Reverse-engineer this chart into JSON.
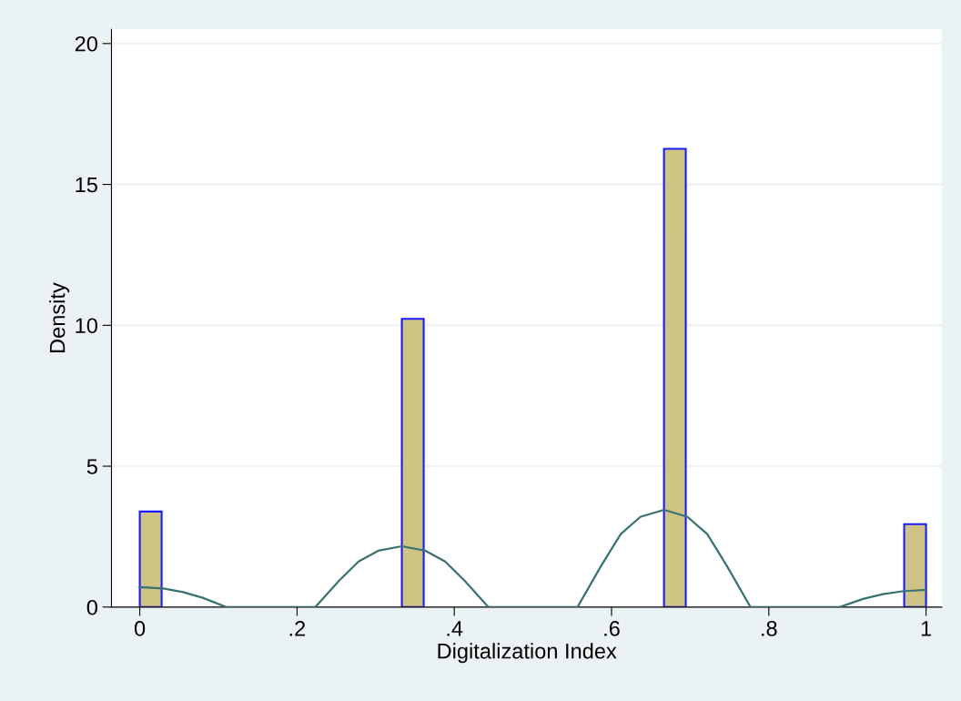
{
  "chart_data": {
    "type": "histogram",
    "xlabel": "Digitalization Index",
    "ylabel": "Density",
    "bins": [
      0,
      0.0278,
      0.3333,
      0.3611,
      0.6667,
      0.6944,
      0.9722,
      1
    ],
    "values": [
      3.39,
      0,
      10.23,
      0,
      16.26,
      0,
      2.94
    ],
    "color": "#d0c485",
    "series": [
      {
        "type": "line",
        "color": "#3a7272",
        "x": [
          0,
          0.03,
          0.055,
          0.08,
          0.11,
          0.2233,
          0.2533,
          0.2783,
          0.3033,
          0.3333,
          0.3633,
          0.3883,
          0.4133,
          0.4433,
          0.5567,
          0.5867,
          0.6117,
          0.6367,
          0.6667,
          0.6967,
          0.7217,
          0.7467,
          0.7767,
          0.89,
          0.92,
          0.945,
          0.97,
          1
        ],
        "values": [
          0.71,
          0.66,
          0.53,
          0.33,
          0,
          0,
          0.93,
          1.62,
          2.0,
          2.16,
          2.0,
          1.62,
          0.93,
          0,
          0,
          1.46,
          2.59,
          3.2,
          3.45,
          3.2,
          2.59,
          1.46,
          0,
          0,
          0.29,
          0.46,
          0.56,
          0.61
        ]
      }
    ],
    "xlim": [
      -0.036,
      1.02
    ],
    "ylim": [
      0,
      20.5
    ],
    "xticks": [
      0,
      {
        "value": 0.2,
        "label": ".2"
      },
      {
        "value": 0.4,
        "label": ".4"
      },
      {
        "value": 0.6,
        "label": ".6"
      },
      {
        "value": 0.8,
        "label": ".8"
      },
      1
    ],
    "yticks": [
      0,
      5,
      10,
      15,
      20
    ],
    "grid": "y"
  }
}
